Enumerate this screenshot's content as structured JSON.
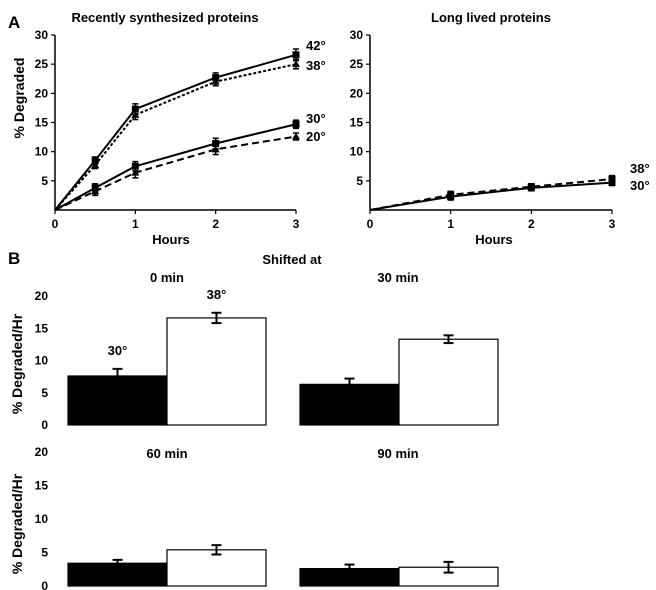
{
  "panel_letters": [
    "A",
    "B"
  ],
  "panel_b_header": "Shifted at",
  "colors": {
    "filled_bar": "#000000",
    "open_bar": "#ffffff",
    "axis": "#000000"
  },
  "chart_data": [
    {
      "id": "recent",
      "type": "line",
      "title": "Recently synthesized proteins",
      "xlabel": "Hours",
      "ylabel": "% Degraded",
      "xlim": [
        0,
        3
      ],
      "ylim": [
        0,
        30
      ],
      "x_ticks": [
        0,
        1,
        2,
        3
      ],
      "y_ticks": [
        5,
        10,
        15,
        20,
        25,
        30
      ],
      "y_axis_zero_label": false,
      "series": [
        {
          "name": "42°",
          "style": "solid",
          "marker": "square",
          "x": [
            0,
            0.5,
            1,
            2,
            3
          ],
          "y": [
            0,
            8.5,
            17.3,
            22.7,
            26.6
          ],
          "err": [
            0,
            0.6,
            0.9,
            0.8,
            1.0
          ]
        },
        {
          "name": "38°",
          "style": "dotted",
          "marker": "triangle",
          "x": [
            0,
            0.5,
            1,
            2,
            3
          ],
          "y": [
            0,
            7.7,
            16.3,
            22.0,
            25.0
          ],
          "err": [
            0,
            0.6,
            0.8,
            0.7,
            0.8
          ]
        },
        {
          "name": "30°",
          "style": "solid",
          "marker": "square",
          "x": [
            0,
            0.5,
            1,
            2,
            3
          ],
          "y": [
            0,
            3.8,
            7.5,
            11.4,
            14.7
          ],
          "err": [
            0,
            0.7,
            0.8,
            0.9,
            0.7
          ]
        },
        {
          "name": "20°",
          "style": "dashed",
          "marker": "triangle",
          "x": [
            0,
            0.5,
            1,
            2,
            3
          ],
          "y": [
            0,
            3.2,
            6.4,
            10.4,
            12.6
          ],
          "err": [
            0,
            0.7,
            0.9,
            0.9,
            0.6
          ]
        }
      ]
    },
    {
      "id": "long",
      "type": "line",
      "title": "Long lived proteins",
      "xlabel": "Hours",
      "ylabel": "",
      "xlim": [
        0,
        3
      ],
      "ylim": [
        0,
        30
      ],
      "x_ticks": [
        0,
        1,
        2,
        3
      ],
      "y_ticks": [
        5,
        10,
        15,
        20,
        25,
        30
      ],
      "y_axis_zero_label": false,
      "series": [
        {
          "name": "38°",
          "style": "dashed",
          "marker": "square",
          "x": [
            0,
            1,
            2,
            3
          ],
          "y": [
            0,
            2.6,
            4.0,
            5.3
          ],
          "err": [
            0,
            0.6,
            0.5,
            0.6
          ]
        },
        {
          "name": "30°",
          "style": "solid",
          "marker": "square",
          "x": [
            0,
            1,
            2,
            3
          ],
          "y": [
            0,
            2.3,
            3.8,
            4.7
          ],
          "err": [
            0,
            0.6,
            0.5,
            0.5
          ]
        }
      ]
    },
    {
      "id": "shift0",
      "type": "bar",
      "title": "0 min",
      "ylabel": "% Degraded/Hr",
      "ylim": [
        0,
        20
      ],
      "y_ticks": [
        0,
        5,
        10,
        15,
        20
      ],
      "categories": [
        "30°",
        "38°"
      ],
      "category_labels_shown": true,
      "values": [
        7.6,
        16.6
      ],
      "err": [
        1.1,
        0.8
      ]
    },
    {
      "id": "shift30",
      "type": "bar",
      "title": "30 min",
      "ylabel": "",
      "ylim": [
        0,
        20
      ],
      "y_ticks": [],
      "categories": [
        "30°",
        "38°"
      ],
      "category_labels_shown": false,
      "values": [
        6.3,
        13.3
      ],
      "err": [
        0.9,
        0.6
      ]
    },
    {
      "id": "shift60",
      "type": "bar",
      "title": "60 min",
      "ylabel": "% Degraded/Hr",
      "ylim": [
        0,
        20
      ],
      "y_ticks": [
        0,
        5,
        10,
        15,
        20
      ],
      "categories": [
        "30°",
        "38°"
      ],
      "category_labels_shown": false,
      "values": [
        3.4,
        5.4
      ],
      "err": [
        0.5,
        0.7
      ]
    },
    {
      "id": "shift90",
      "type": "bar",
      "title": "90 min",
      "ylabel": "",
      "ylim": [
        0,
        20
      ],
      "y_ticks": [],
      "categories": [
        "30°",
        "38°"
      ],
      "category_labels_shown": false,
      "values": [
        2.6,
        2.8
      ],
      "err": [
        0.6,
        0.8
      ]
    }
  ]
}
